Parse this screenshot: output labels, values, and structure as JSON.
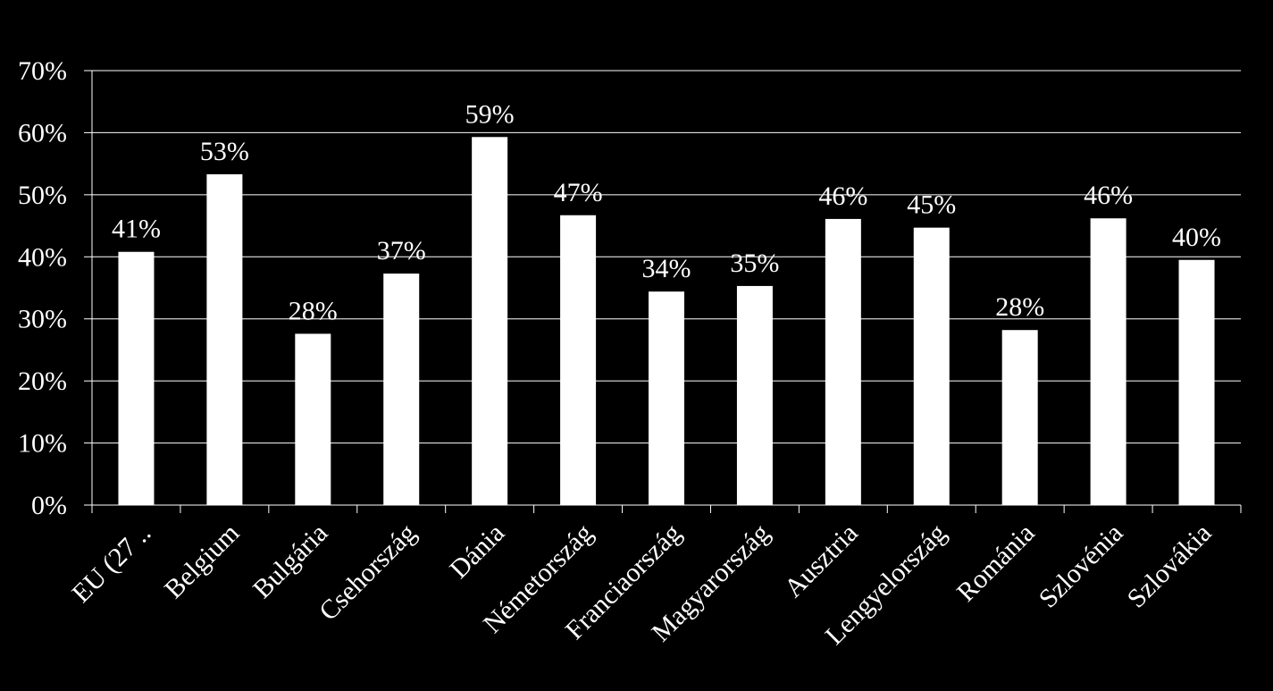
{
  "chart_data": {
    "type": "bar",
    "title": "",
    "xlabel": "",
    "ylabel": "",
    "categories": [
      "EU (27 ..",
      "Belgium",
      "Bulgária",
      "Csehország",
      "Dánia",
      "Németország",
      "Franciaország",
      "Magyarország",
      "Ausztria",
      "Lengyelország",
      "Románia",
      "Szlovénia",
      "Szlovákia"
    ],
    "values": [
      41,
      53,
      28,
      37,
      59,
      47,
      34,
      35,
      46,
      45,
      28,
      46,
      40
    ],
    "bar_values": [
      40.8,
      53.3,
      27.6,
      37.3,
      59.3,
      46.7,
      34.4,
      35.3,
      46.1,
      44.7,
      28.2,
      46.2,
      39.5
    ],
    "data_labels": [
      "41%",
      "53%",
      "28%",
      "37%",
      "59%",
      "47%",
      "34%",
      "35%",
      "46%",
      "45%",
      "28%",
      "46%",
      "40%"
    ],
    "ylim": [
      0,
      70
    ],
    "yticks": [
      0,
      10,
      20,
      30,
      40,
      50,
      60,
      70
    ],
    "ytick_labels": [
      "0%",
      "10%",
      "20%",
      "30%",
      "40%",
      "50%",
      "60%",
      "70%"
    ],
    "grid": true,
    "legend": "none",
    "colors": {
      "background": "#000000",
      "bar": "#ffffff",
      "text": "#ffffff",
      "grid": "#ffffff"
    }
  }
}
